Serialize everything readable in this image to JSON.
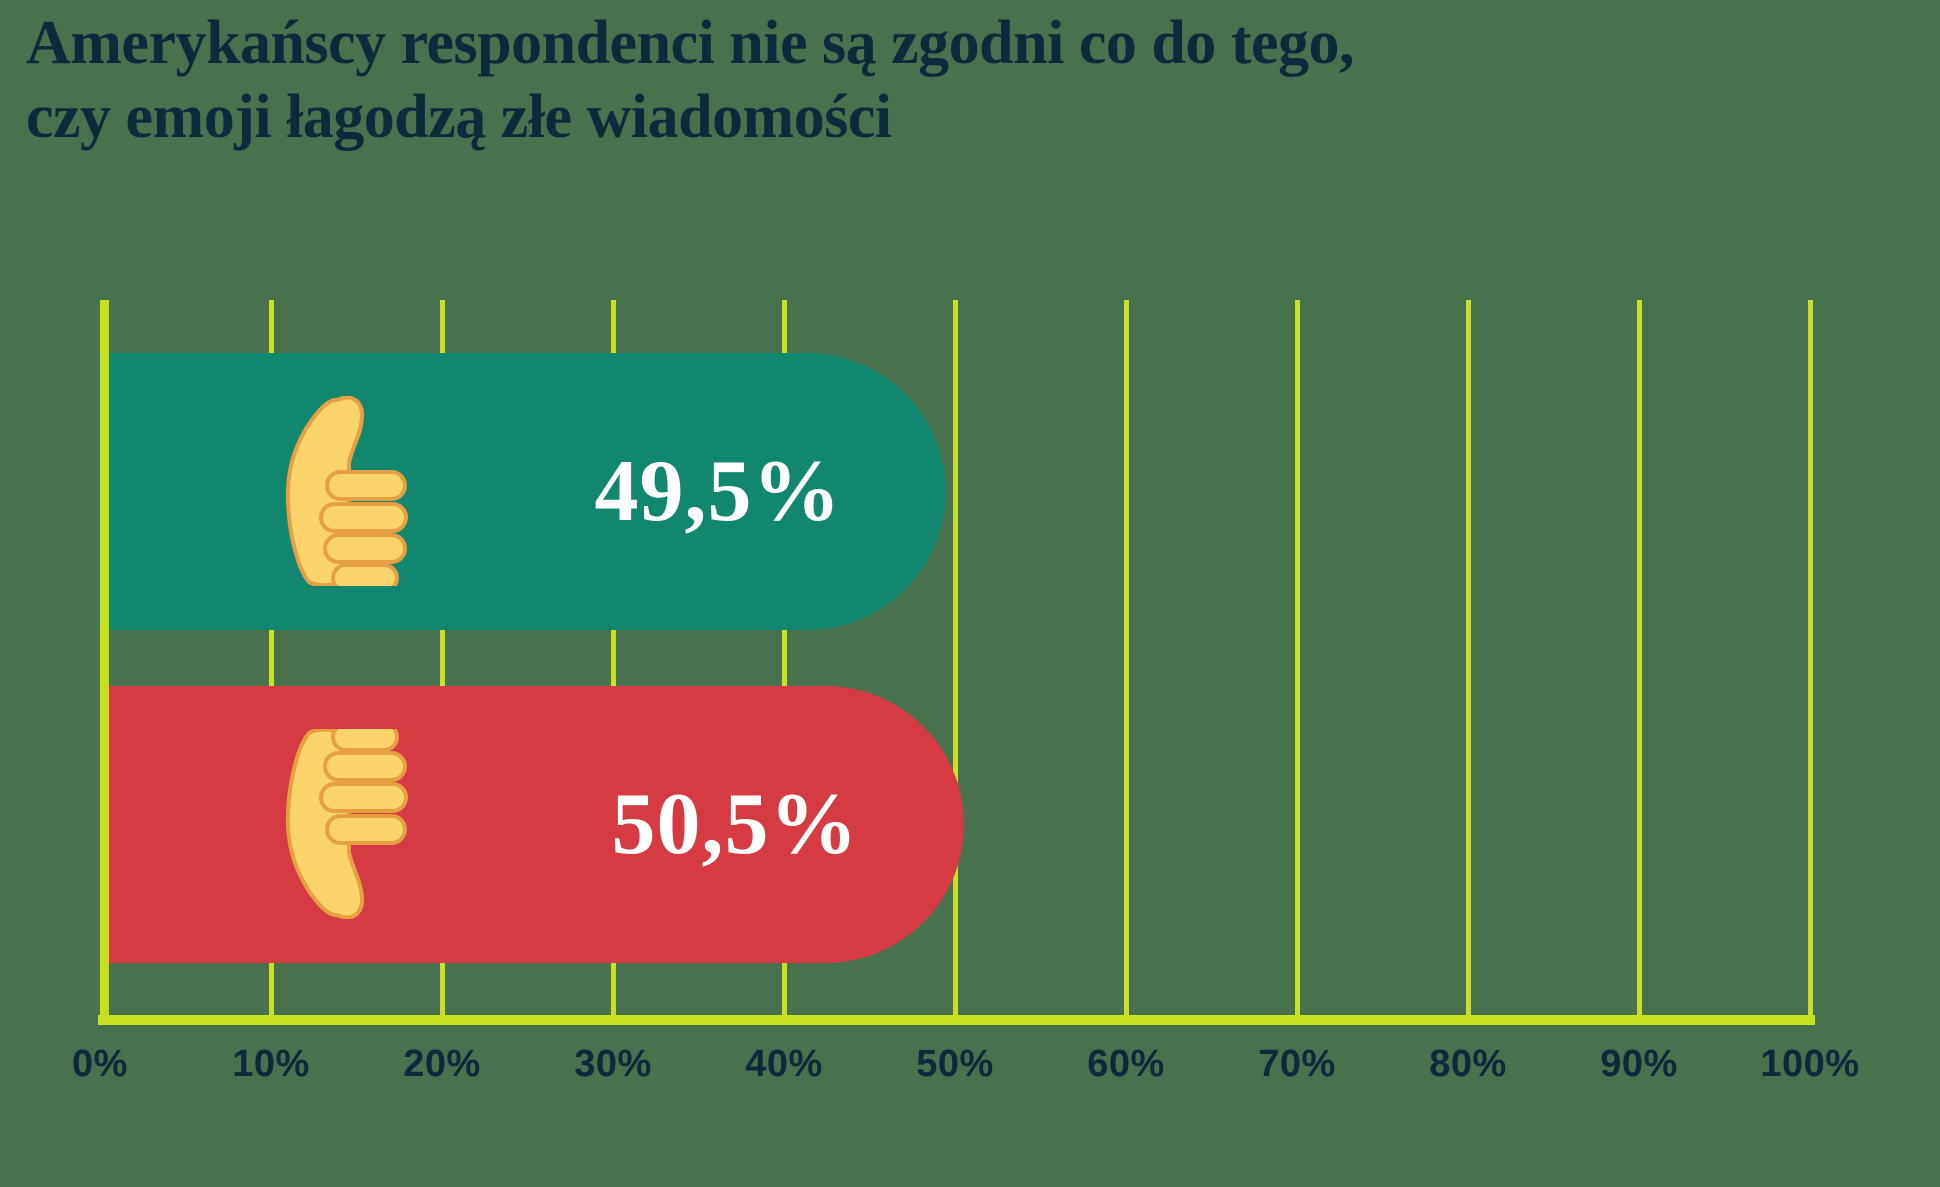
{
  "title": {
    "line1": "Amerykańscy respondenci nie są zgodni co do tego,",
    "line2": "czy emoji łagodzą złe wiadomości"
  },
  "colors": {
    "background": "#48714E",
    "grid": "#CAE026",
    "axis": "#C6DF1E",
    "bar_positive": "#118770",
    "bar_negative": "#D63A42",
    "title_text": "#0D2A3C",
    "tick_text": "#0D2A3C",
    "value_text": "#FFFFFF",
    "emoji_fill": "#FBD46B",
    "emoji_shade": "#E6A042"
  },
  "chart_data": {
    "type": "bar",
    "orientation": "horizontal",
    "title": "Amerykańscy respondenci nie są zgodni co do tego, czy emoji łagodzą złe wiadomości",
    "categories": [
      "thumbs-up",
      "thumbs-down"
    ],
    "values": [
      49.5,
      50.5
    ],
    "rows": [
      {
        "category": "thumbs-up",
        "icon": "thumbs-up-emoji",
        "value": 49.5,
        "label": "49,5%",
        "bar_color": "#118770"
      },
      {
        "category": "thumbs-down",
        "icon": "thumbs-down-emoji",
        "value": 50.5,
        "label": "50,5%",
        "bar_color": "#D63A42"
      }
    ],
    "x_ticks": [
      "0%",
      "10%",
      "20%",
      "30%",
      "40%",
      "50%",
      "60%",
      "70%",
      "80%",
      "90%",
      "100%"
    ],
    "xlim": [
      0,
      100
    ],
    "xlabel": "",
    "ylabel": "",
    "grid": "vertical",
    "legend": false
  }
}
